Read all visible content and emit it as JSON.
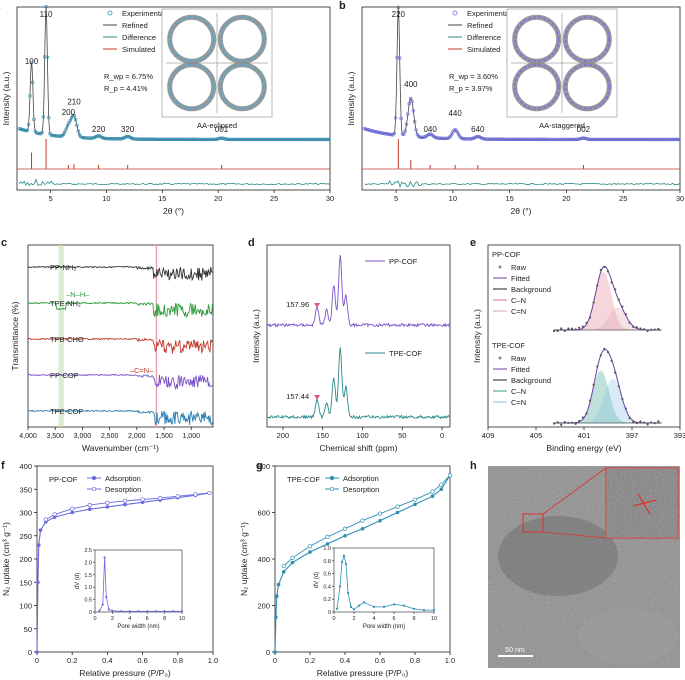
{
  "chart_data": [
    {
      "id": "a",
      "type": "line",
      "panel_label": "a",
      "xlabel": "2θ (°)",
      "ylabel": "Intensity (a.u.)",
      "xlim": [
        2,
        30
      ],
      "x_ticks": [
        "5",
        "10",
        "15",
        "20",
        "25",
        "30"
      ],
      "legend": [
        "Experimental",
        "Refined",
        "Difference",
        "Simulated"
      ],
      "peaks": [
        {
          "label": "100",
          "x": 3.3,
          "h": 0.55
        },
        {
          "label": "110",
          "x": 4.6,
          "h": 1.0
        },
        {
          "label": "200",
          "x": 6.6,
          "h": 0.08
        },
        {
          "label": "210",
          "x": 7.1,
          "h": 0.16
        },
        {
          "label": "220",
          "x": 9.3,
          "h": 0.02
        },
        {
          "label": "320",
          "x": 11.9,
          "h": 0.02
        },
        {
          "label": "001",
          "x": 20.3,
          "h": 0.01
        }
      ],
      "stats": [
        "R_wp = 6.75%",
        "R_p = 4.41%"
      ],
      "structure_caption": "AA-eclipsed"
    },
    {
      "id": "b",
      "type": "line",
      "panel_label": "b",
      "xlabel": "2θ (°)",
      "ylabel": "Intensity (a.u.)",
      "xlim": [
        2,
        30
      ],
      "x_ticks": [
        "5",
        "10",
        "15",
        "20",
        "25",
        "30"
      ],
      "legend": [
        "Experimental",
        "Refined",
        "Difference",
        "Simulated"
      ],
      "peaks": [
        {
          "label": "220",
          "x": 5.2,
          "h": 1.0
        },
        {
          "label": "400",
          "x": 6.3,
          "h": 0.3
        },
        {
          "label": "040",
          "x": 8.0,
          "h": 0.03
        },
        {
          "label": "440",
          "x": 10.2,
          "h": 0.07
        },
        {
          "label": "640",
          "x": 12.2,
          "h": 0.02
        },
        {
          "label": "002",
          "x": 21.5,
          "h": 0.01
        }
      ],
      "stats": [
        "R_wp = 3.60%",
        "R_p = 3.97%"
      ],
      "structure_caption": "AA-staggered"
    },
    {
      "id": "c",
      "type": "line",
      "panel_label": "c",
      "xlabel": "Wavenumber (cm⁻¹)",
      "ylabel": "Transmittance (%)",
      "xlim": [
        4000,
        600
      ],
      "x_ticks": [
        "4,000",
        "3,500",
        "3,000",
        "2,500",
        "2,000",
        "1,500",
        "1,000"
      ],
      "series": [
        {
          "name": "PP-NH₂",
          "color": "#333333"
        },
        {
          "name": "TPE-NH₂",
          "color": "#2e9b3a"
        },
        {
          "name": "TPB-CHO",
          "color": "#c0392b"
        },
        {
          "name": "PP-COF",
          "color": "#7b55c9"
        },
        {
          "name": "TPE-COF",
          "color": "#2a7fb3"
        }
      ],
      "annotations": [
        "–N–H–",
        "–C=N–"
      ]
    },
    {
      "id": "d",
      "type": "line",
      "panel_label": "d",
      "xlabel": "Chemical shift (ppm)",
      "ylabel": "Intensity (a.u.)",
      "xlim": [
        220,
        -10
      ],
      "x_ticks": [
        "200",
        "150",
        "100",
        "50",
        "0"
      ],
      "series": [
        {
          "name": "PP-COF",
          "color": "#7b55c9",
          "peak_label": "157.96"
        },
        {
          "name": "TPE-COF",
          "color": "#2a8a8a",
          "peak_label": "157.44"
        }
      ]
    },
    {
      "id": "e",
      "type": "line",
      "panel_label": "e",
      "xlabel": "Binding energy (eV)",
      "ylabel": "Intensity (a.u.)",
      "xlim": [
        409,
        393
      ],
      "x_ticks": [
        "409",
        "405",
        "401",
        "397",
        "393"
      ],
      "groups": [
        {
          "name": "PP-COF",
          "legend": [
            "Raw",
            "Fitted",
            "Background",
            "C–N",
            "C=N"
          ]
        },
        {
          "name": "TPE-COF",
          "legend": [
            "Raw",
            "Fitted",
            "Background",
            "C–N",
            "C=N"
          ]
        }
      ]
    },
    {
      "id": "f",
      "type": "line",
      "panel_label": "f",
      "title": "PP-COF",
      "xlabel": "Relative pressure (P/P₀)",
      "ylabel": "N₂ uptake (cm³ g⁻¹)",
      "xlim": [
        0,
        1.0
      ],
      "ylim": [
        0,
        400
      ],
      "x_ticks": [
        "0",
        "0.2",
        "0.4",
        "0.6",
        "0.8",
        "1.0"
      ],
      "y_ticks": [
        "0",
        "50",
        "100",
        "150",
        "200",
        "250",
        "300",
        "350",
        "400"
      ],
      "series": [
        {
          "name": "Adsorption",
          "x": [
            0.0,
            0.005,
            0.01,
            0.02,
            0.05,
            0.1,
            0.2,
            0.3,
            0.4,
            0.5,
            0.6,
            0.7,
            0.8,
            0.9,
            0.98
          ],
          "y": [
            0,
            150,
            230,
            262,
            280,
            290,
            300,
            307,
            312,
            317,
            322,
            327,
            332,
            337,
            342
          ]
        },
        {
          "name": "Desorption",
          "x": [
            0.98,
            0.9,
            0.8,
            0.7,
            0.6,
            0.5,
            0.4,
            0.3,
            0.2,
            0.1,
            0.05
          ],
          "y": [
            342,
            339,
            335,
            331,
            328,
            325,
            321,
            316,
            308,
            296,
            285
          ]
        }
      ],
      "inset": {
        "xlabel": "Pore width (nm)",
        "ylabel": "dV (d)",
        "xlim": [
          0,
          10
        ],
        "ylim": [
          0,
          2.5
        ],
        "x_ticks": [
          "0",
          "2",
          "4",
          "6",
          "8",
          "10"
        ],
        "y_ticks": [
          "0",
          "0.5",
          "1.0",
          "1.5",
          "2.0",
          "2.5"
        ],
        "x": [
          0.5,
          0.9,
          1.1,
          1.3,
          1.6,
          2.0,
          3,
          4,
          5,
          6,
          7,
          8,
          9,
          10
        ],
        "y": [
          0.05,
          0.3,
          2.2,
          0.6,
          0.1,
          0.05,
          0.03,
          0.03,
          0.03,
          0.03,
          0.03,
          0.03,
          0.03,
          0.03
        ]
      }
    },
    {
      "id": "g",
      "type": "line",
      "panel_label": "g",
      "title": "TPE-COF",
      "xlabel": "Relative pressure (P/P₀)",
      "ylabel": "N₂ uptake (cm³ g⁻¹)",
      "xlim": [
        0,
        1.0
      ],
      "ylim": [
        0,
        800
      ],
      "x_ticks": [
        "0",
        "0.2",
        "0.4",
        "0.6",
        "0.8",
        "1.0"
      ],
      "y_ticks": [
        "0",
        "200",
        "400",
        "600",
        "800"
      ],
      "series": [
        {
          "name": "Adsorption",
          "x": [
            0.0,
            0.005,
            0.01,
            0.02,
            0.05,
            0.1,
            0.2,
            0.3,
            0.4,
            0.5,
            0.6,
            0.7,
            0.8,
            0.9,
            0.95,
            1.0
          ],
          "y": [
            0,
            150,
            240,
            290,
            345,
            385,
            430,
            465,
            500,
            530,
            565,
            600,
            635,
            670,
            700,
            760
          ]
        },
        {
          "name": "Desorption",
          "x": [
            1.0,
            0.95,
            0.9,
            0.8,
            0.7,
            0.6,
            0.5,
            0.4,
            0.3,
            0.2,
            0.1,
            0.05
          ],
          "y": [
            760,
            720,
            690,
            655,
            625,
            595,
            565,
            530,
            495,
            455,
            405,
            370
          ]
        }
      ],
      "inset": {
        "xlabel": "Pore width (nm)",
        "ylabel": "dV (d)",
        "xlim": [
          0,
          10
        ],
        "ylim": [
          0,
          1.0
        ],
        "x_ticks": [
          "0",
          "2",
          "4",
          "6",
          "8",
          "10"
        ],
        "y_ticks": [
          "0",
          "0.2",
          "0.4",
          "0.6",
          "0.8",
          "1.0"
        ],
        "x": [
          0.3,
          0.6,
          0.8,
          1.0,
          1.2,
          1.4,
          1.7,
          2.0,
          2.5,
          3.0,
          4,
          5,
          6,
          7,
          8,
          9,
          10
        ],
        "y": [
          0.05,
          0.4,
          0.78,
          0.88,
          0.75,
          0.3,
          0.08,
          0.04,
          0.1,
          0.15,
          0.08,
          0.08,
          0.12,
          0.1,
          0.05,
          0.03,
          0.03
        ]
      }
    },
    {
      "id": "h",
      "type": "image",
      "panel_label": "h",
      "scale_bar": "50 nm"
    }
  ]
}
